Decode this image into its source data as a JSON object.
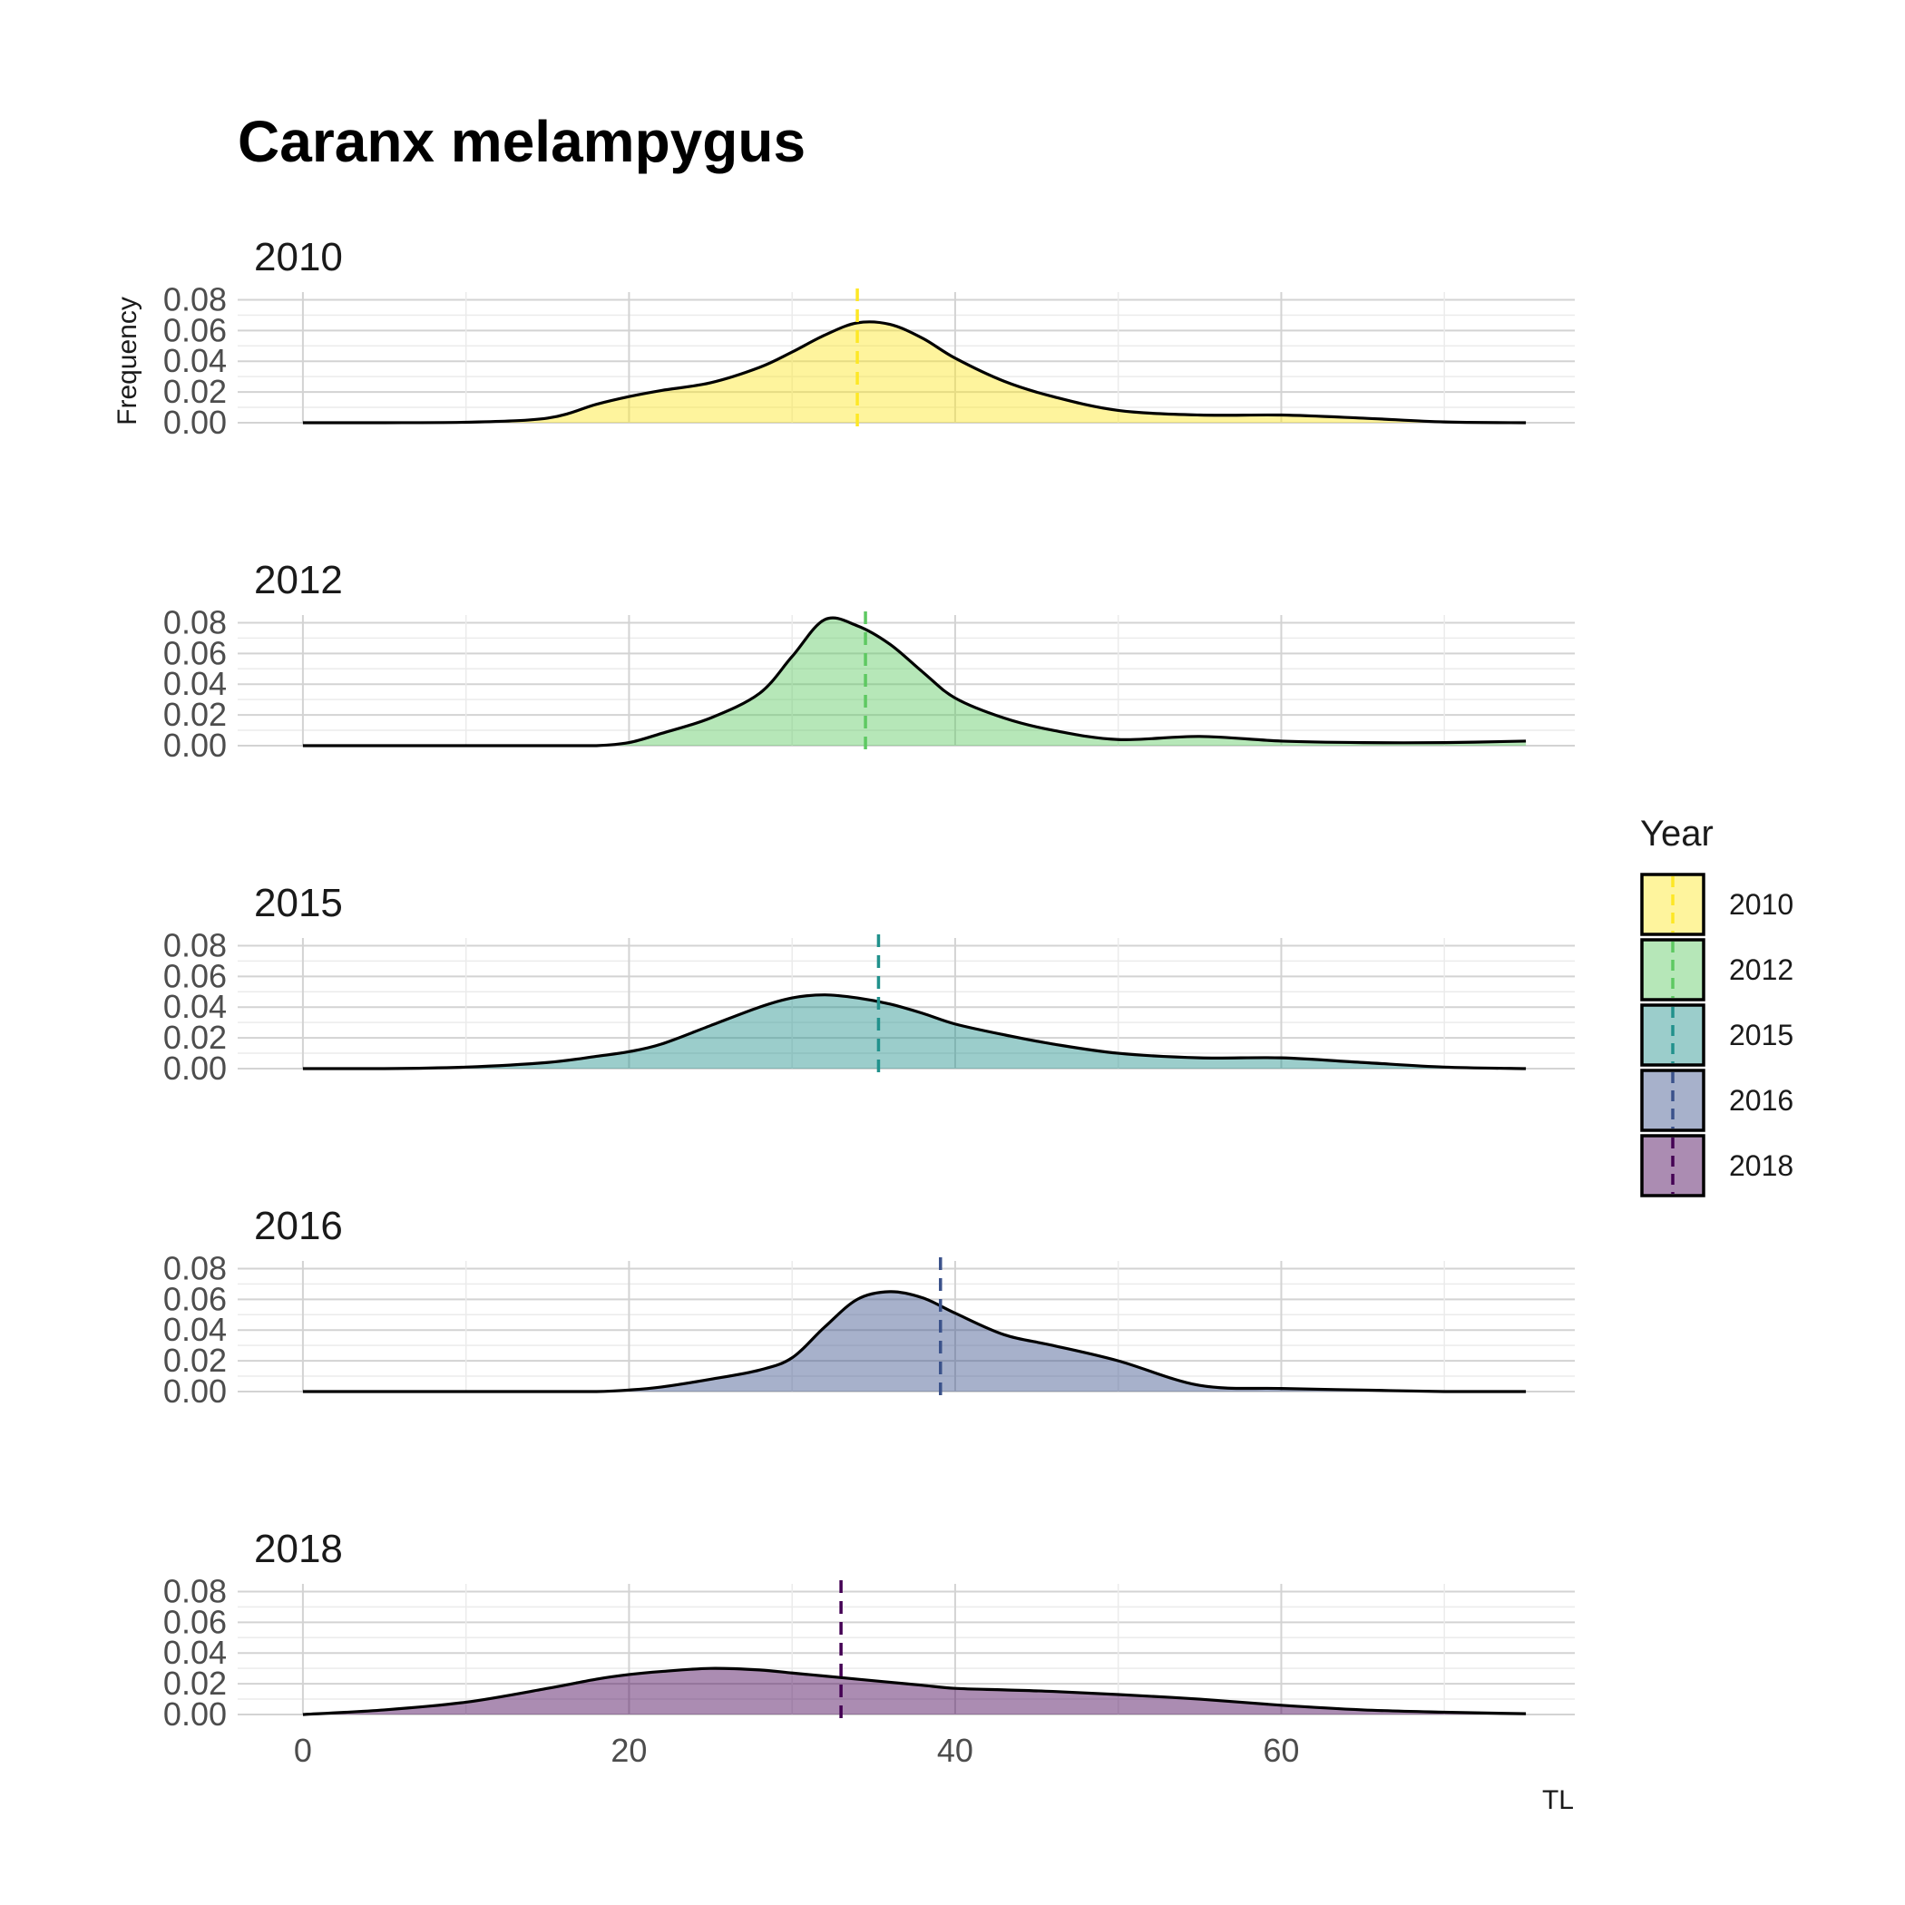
{
  "chart_data": {
    "type": "area",
    "title": "Caranx melampygus",
    "xlabel": "TL",
    "ylabel": "Frequency",
    "xlim": [
      -4,
      78
    ],
    "ylim": [
      0,
      0.085
    ],
    "x_ticks": [
      0,
      20,
      40,
      60
    ],
    "y_ticks": [
      0,
      0.02,
      0.04,
      0.06,
      0.08
    ],
    "y_tick_labels": [
      "0.00",
      "0.02",
      "0.04",
      "0.06",
      "0.08"
    ],
    "grid": true,
    "legend": {
      "title": "Year",
      "position": "right"
    },
    "x": [
      0,
      5,
      10,
      15,
      18,
      20,
      22,
      25,
      28,
      30,
      32,
      34,
      36,
      38,
      40,
      43,
      46,
      50,
      55,
      60,
      65,
      70,
      75
    ],
    "series": [
      {
        "name": "2010",
        "color": "#fde725",
        "mean": 34.0,
        "values": [
          0,
          0,
          0.0003,
          0.003,
          0.012,
          0.017,
          0.021,
          0.026,
          0.036,
          0.046,
          0.057,
          0.065,
          0.064,
          0.055,
          0.042,
          0.027,
          0.017,
          0.008,
          0.005,
          0.005,
          0.003,
          0.0005,
          0
        ]
      },
      {
        "name": "2012",
        "color": "#5ec962",
        "mean": 34.5,
        "values": [
          0,
          0,
          0,
          0,
          0,
          0.002,
          0.008,
          0.018,
          0.034,
          0.058,
          0.082,
          0.078,
          0.066,
          0.048,
          0.031,
          0.018,
          0.01,
          0.004,
          0.006,
          0.003,
          0.002,
          0.002,
          0.003
        ]
      },
      {
        "name": "2015",
        "color": "#21918c",
        "mean": 35.3,
        "values": [
          0,
          0,
          0.001,
          0.004,
          0.008,
          0.011,
          0.016,
          0.028,
          0.04,
          0.046,
          0.048,
          0.046,
          0.042,
          0.036,
          0.029,
          0.022,
          0.016,
          0.01,
          0.007,
          0.007,
          0.004,
          0.001,
          0
        ]
      },
      {
        "name": "2016",
        "color": "#3b528b",
        "mean": 39.1,
        "values": [
          0,
          0,
          0,
          0,
          0,
          0.001,
          0.003,
          0.008,
          0.014,
          0.022,
          0.042,
          0.06,
          0.065,
          0.061,
          0.051,
          0.037,
          0.03,
          0.02,
          0.004,
          0.002,
          0.001,
          0,
          0
        ]
      },
      {
        "name": "2018",
        "color": "#440154",
        "mean": 33.0,
        "values": [
          0,
          0.003,
          0.008,
          0.017,
          0.023,
          0.026,
          0.028,
          0.03,
          0.029,
          0.027,
          0.025,
          0.023,
          0.021,
          0.019,
          0.017,
          0.016,
          0.015,
          0.013,
          0.01,
          0.006,
          0.003,
          0.0015,
          0.0005
        ]
      }
    ]
  }
}
